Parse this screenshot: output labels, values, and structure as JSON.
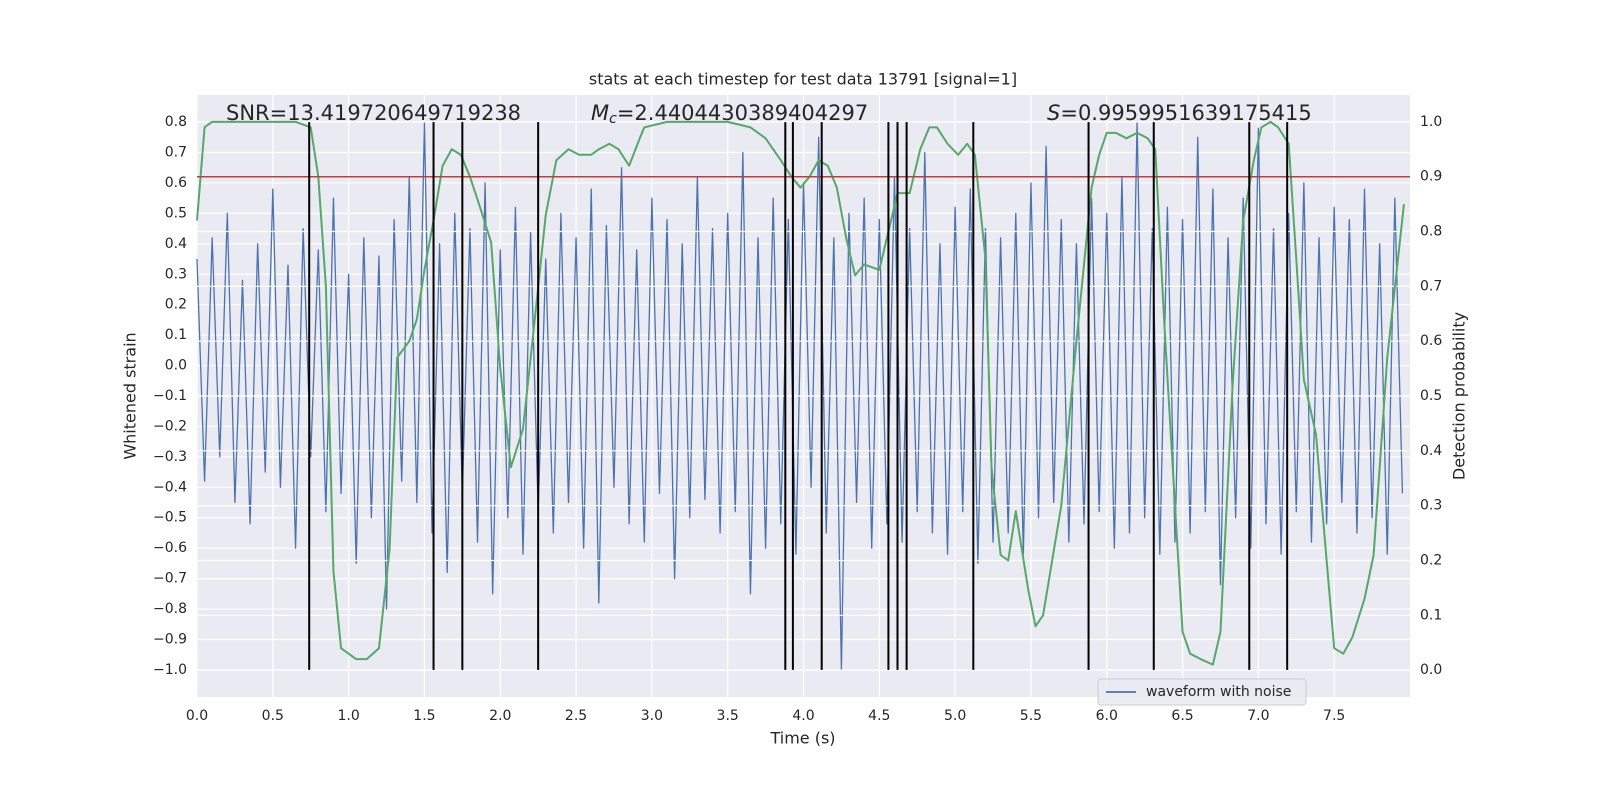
{
  "chart_data": {
    "type": "line",
    "title": "stats at each timestep for test data 13791 [signal=1]",
    "x_label": "Time (s)",
    "y_label": "Whitened strain",
    "y2_label": "Detection probability",
    "xlim": [
      0,
      8.0
    ],
    "ylim": [
      -1.089,
      0.889
    ],
    "y2lim": [
      -0.049,
      1.049
    ],
    "grid": true,
    "legend": "lower right",
    "xticks": [
      {
        "value": 0,
        "label": "0.0"
      },
      0.5,
      {
        "value": 1,
        "label": "1.0"
      },
      1.5,
      {
        "value": 2,
        "label": "2.0"
      },
      2.5,
      {
        "value": 3,
        "label": "3.0"
      },
      3.5,
      {
        "value": 4,
        "label": "4.0"
      },
      4.5,
      {
        "value": 5,
        "label": "5.0"
      },
      5.5,
      {
        "value": 6,
        "label": "6.0"
      },
      6.5,
      {
        "value": 7,
        "label": "7.0"
      },
      7.5
    ],
    "yticks": [
      {
        "value": -1.0,
        "label": "−1.0"
      },
      {
        "value": -0.9,
        "label": "−0.9"
      },
      {
        "value": -0.8,
        "label": "−0.8"
      },
      {
        "value": -0.7,
        "label": "−0.7"
      },
      {
        "value": -0.6,
        "label": "−0.6"
      },
      {
        "value": -0.5,
        "label": "−0.5"
      },
      {
        "value": -0.4,
        "label": "−0.4"
      },
      {
        "value": -0.3,
        "label": "−0.3"
      },
      {
        "value": -0.2,
        "label": "−0.2"
      },
      {
        "value": -0.1,
        "label": "−0.1"
      },
      {
        "value": 0,
        "label": "0.0"
      },
      0.1,
      0.2,
      0.3,
      0.4,
      0.5,
      0.6,
      0.7,
      0.8
    ],
    "y2ticks": [
      {
        "value": 0,
        "label": "0.0"
      },
      0.1,
      0.2,
      0.3,
      0.4,
      0.5,
      0.6,
      0.7,
      0.8,
      0.9,
      {
        "value": 1,
        "label": "1.0"
      }
    ],
    "annotations": {
      "snr": "SNR=13.419720649719238",
      "mc_symbol": "M",
      "mc_subscript": "c",
      "mc_value": "=2.4404430389404297",
      "s_symbol": "S",
      "s_value": "=0.9959951639175415"
    },
    "hline": {
      "value": 0.9,
      "axis": "y2",
      "color": "#c03d3e"
    },
    "vlines": {
      "x": [
        0.74,
        1.56,
        1.75,
        2.25,
        3.88,
        3.93,
        4.12,
        4.56,
        4.62,
        4.68,
        5.12,
        5.88,
        6.31,
        6.94,
        7.19
      ],
      "ymin": -1.0,
      "ymax": 0.8,
      "color": "#000000"
    },
    "series": [
      {
        "name": "waveform with noise",
        "color": "#4c72b0",
        "axis": "y",
        "x": [
          0,
          0.05,
          0.1,
          0.15,
          0.2,
          0.25,
          0.3,
          0.35,
          0.4,
          0.45,
          0.5,
          0.55,
          0.6,
          0.65,
          0.7,
          0.75,
          0.8,
          0.85,
          0.9,
          0.95,
          1,
          1.05,
          1.1,
          1.15,
          1.2,
          1.25,
          1.3,
          1.35,
          1.4,
          1.45,
          1.5,
          1.55,
          1.6,
          1.65,
          1.7,
          1.75,
          1.8,
          1.85,
          1.9,
          1.95,
          2,
          2.05,
          2.1,
          2.15,
          2.2,
          2.25,
          2.3,
          2.35,
          2.4,
          2.45,
          2.5,
          2.55,
          2.6,
          2.65,
          2.7,
          2.75,
          2.8,
          2.85,
          2.9,
          2.95,
          3,
          3.05,
          3.1,
          3.15,
          3.2,
          3.25,
          3.3,
          3.35,
          3.4,
          3.45,
          3.5,
          3.55,
          3.6,
          3.65,
          3.7,
          3.75,
          3.8,
          3.85,
          3.9,
          3.95,
          4,
          4.05,
          4.1,
          4.15,
          4.2,
          4.25,
          4.3,
          4.35,
          4.4,
          4.45,
          4.5,
          4.55,
          4.6,
          4.65,
          4.7,
          4.75,
          4.8,
          4.85,
          4.9,
          4.95,
          5,
          5.05,
          5.1,
          5.15,
          5.2,
          5.25,
          5.3,
          5.35,
          5.4,
          5.45,
          5.5,
          5.55,
          5.6,
          5.65,
          5.7,
          5.75,
          5.8,
          5.85,
          5.9,
          5.95,
          6,
          6.05,
          6.1,
          6.15,
          6.2,
          6.25,
          6.3,
          6.35,
          6.4,
          6.45,
          6.5,
          6.55,
          6.6,
          6.65,
          6.7,
          6.75,
          6.8,
          6.85,
          6.9,
          6.95,
          7,
          7.05,
          7.1,
          7.15,
          7.2,
          7.25,
          7.3,
          7.35,
          7.4,
          7.45,
          7.5,
          7.55,
          7.6,
          7.65,
          7.7,
          7.75,
          7.8,
          7.85,
          7.9,
          7.95
        ],
        "values": [
          0.35,
          -0.38,
          0.42,
          -0.3,
          0.5,
          -0.45,
          0.28,
          -0.52,
          0.4,
          -0.35,
          0.58,
          -0.4,
          0.33,
          -0.6,
          0.45,
          -0.3,
          0.38,
          -0.48,
          0.55,
          -0.42,
          0.3,
          -0.65,
          0.42,
          -0.5,
          0.36,
          -0.8,
          0.48,
          -0.38,
          0.62,
          -0.45,
          0.8,
          -0.55,
          0.4,
          -0.68,
          0.5,
          -0.42,
          0.45,
          -0.58,
          0.6,
          -0.75,
          0.38,
          -0.5,
          0.52,
          -0.62,
          0.44,
          -0.48,
          0.35,
          -0.55,
          0.5,
          -0.45,
          0.42,
          -0.6,
          0.58,
          -0.78,
          0.46,
          -0.4,
          0.65,
          -0.52,
          0.38,
          -0.58,
          0.55,
          -0.42,
          0.48,
          -0.7,
          0.4,
          -0.5,
          0.62,
          -0.44,
          0.45,
          -0.55,
          0.5,
          -0.48,
          0.7,
          -0.75,
          0.42,
          -0.6,
          0.55,
          -0.52,
          0.48,
          -0.62,
          0.6,
          -0.4,
          0.75,
          -0.55,
          0.42,
          -1.0,
          0.5,
          -0.45,
          0.55,
          -0.6,
          0.48,
          -0.52,
          0.62,
          -0.58,
          0.45,
          -0.48,
          0.7,
          -0.55,
          0.4,
          -0.62,
          0.52,
          -0.48,
          0.58,
          -0.65,
          0.45,
          -0.58,
          0.42,
          -0.55,
          0.5,
          -0.62,
          0.6,
          -0.5,
          0.72,
          -0.45,
          0.48,
          -0.58,
          0.4,
          -0.52,
          0.55,
          -0.48,
          0.5,
          -0.6,
          0.62,
          -0.55,
          0.8,
          -0.5,
          0.45,
          -0.62,
          0.52,
          -0.58,
          0.48,
          -0.55,
          0.75,
          -0.48,
          0.58,
          -0.72,
          0.42,
          -0.5,
          0.55,
          -0.6,
          0.78,
          -0.52,
          0.45,
          -0.62,
          0.5,
          -0.48,
          0.6,
          -0.58,
          0.42,
          -0.52,
          0.52,
          -0.45,
          0.48,
          -0.55,
          0.58,
          -0.5,
          0.4,
          -0.62,
          0.55,
          -0.42
        ]
      },
      {
        "color": "#55a868",
        "axis": "y2",
        "x": [
          0.0,
          0.05,
          0.1,
          0.3,
          0.5,
          0.65,
          0.75,
          0.8,
          0.85,
          0.9,
          0.95,
          1.0,
          1.05,
          1.12,
          1.2,
          1.27,
          1.32,
          1.4,
          1.45,
          1.5,
          1.56,
          1.62,
          1.68,
          1.74,
          1.8,
          1.86,
          1.94,
          2.0,
          2.07,
          2.15,
          2.22,
          2.3,
          2.37,
          2.45,
          2.52,
          2.6,
          2.65,
          2.72,
          2.78,
          2.85,
          2.92,
          2.95,
          3.1,
          3.3,
          3.5,
          3.65,
          3.75,
          3.85,
          3.92,
          3.98,
          4.04,
          4.1,
          4.16,
          4.22,
          4.28,
          4.34,
          4.4,
          4.5,
          4.56,
          4.62,
          4.7,
          4.77,
          4.83,
          4.88,
          4.95,
          5.02,
          5.08,
          5.13,
          5.2,
          5.24,
          5.3,
          5.35,
          5.4,
          5.48,
          5.53,
          5.58,
          5.7,
          5.8,
          5.9,
          5.95,
          6.0,
          6.06,
          6.13,
          6.2,
          6.27,
          6.32,
          6.38,
          6.45,
          6.5,
          6.55,
          6.62,
          6.7,
          6.75,
          6.83,
          6.9,
          6.97,
          7.02,
          7.08,
          7.13,
          7.2,
          7.25,
          7.3,
          7.38,
          7.45,
          7.5,
          7.56,
          7.62,
          7.7,
          7.76,
          7.85,
          7.96
        ],
        "values": [
          0.82,
          0.99,
          1.0,
          1.0,
          1.0,
          1.0,
          0.99,
          0.9,
          0.7,
          0.18,
          0.04,
          0.03,
          0.02,
          0.02,
          0.04,
          0.22,
          0.57,
          0.6,
          0.64,
          0.73,
          0.82,
          0.92,
          0.95,
          0.94,
          0.9,
          0.85,
          0.78,
          0.55,
          0.37,
          0.44,
          0.62,
          0.83,
          0.93,
          0.95,
          0.94,
          0.94,
          0.95,
          0.96,
          0.95,
          0.92,
          0.97,
          0.99,
          1.0,
          1.0,
          1.0,
          0.99,
          0.97,
          0.93,
          0.9,
          0.88,
          0.9,
          0.93,
          0.92,
          0.88,
          0.79,
          0.72,
          0.74,
          0.73,
          0.8,
          0.87,
          0.87,
          0.95,
          0.99,
          0.99,
          0.96,
          0.94,
          0.96,
          0.94,
          0.75,
          0.37,
          0.21,
          0.2,
          0.29,
          0.15,
          0.08,
          0.1,
          0.3,
          0.6,
          0.88,
          0.94,
          0.98,
          0.98,
          0.97,
          0.98,
          0.97,
          0.95,
          0.63,
          0.3,
          0.07,
          0.03,
          0.02,
          0.01,
          0.07,
          0.52,
          0.82,
          0.93,
          0.99,
          1.0,
          0.99,
          0.96,
          0.75,
          0.53,
          0.43,
          0.2,
          0.04,
          0.03,
          0.06,
          0.13,
          0.21,
          0.57,
          0.85
        ]
      }
    ]
  }
}
